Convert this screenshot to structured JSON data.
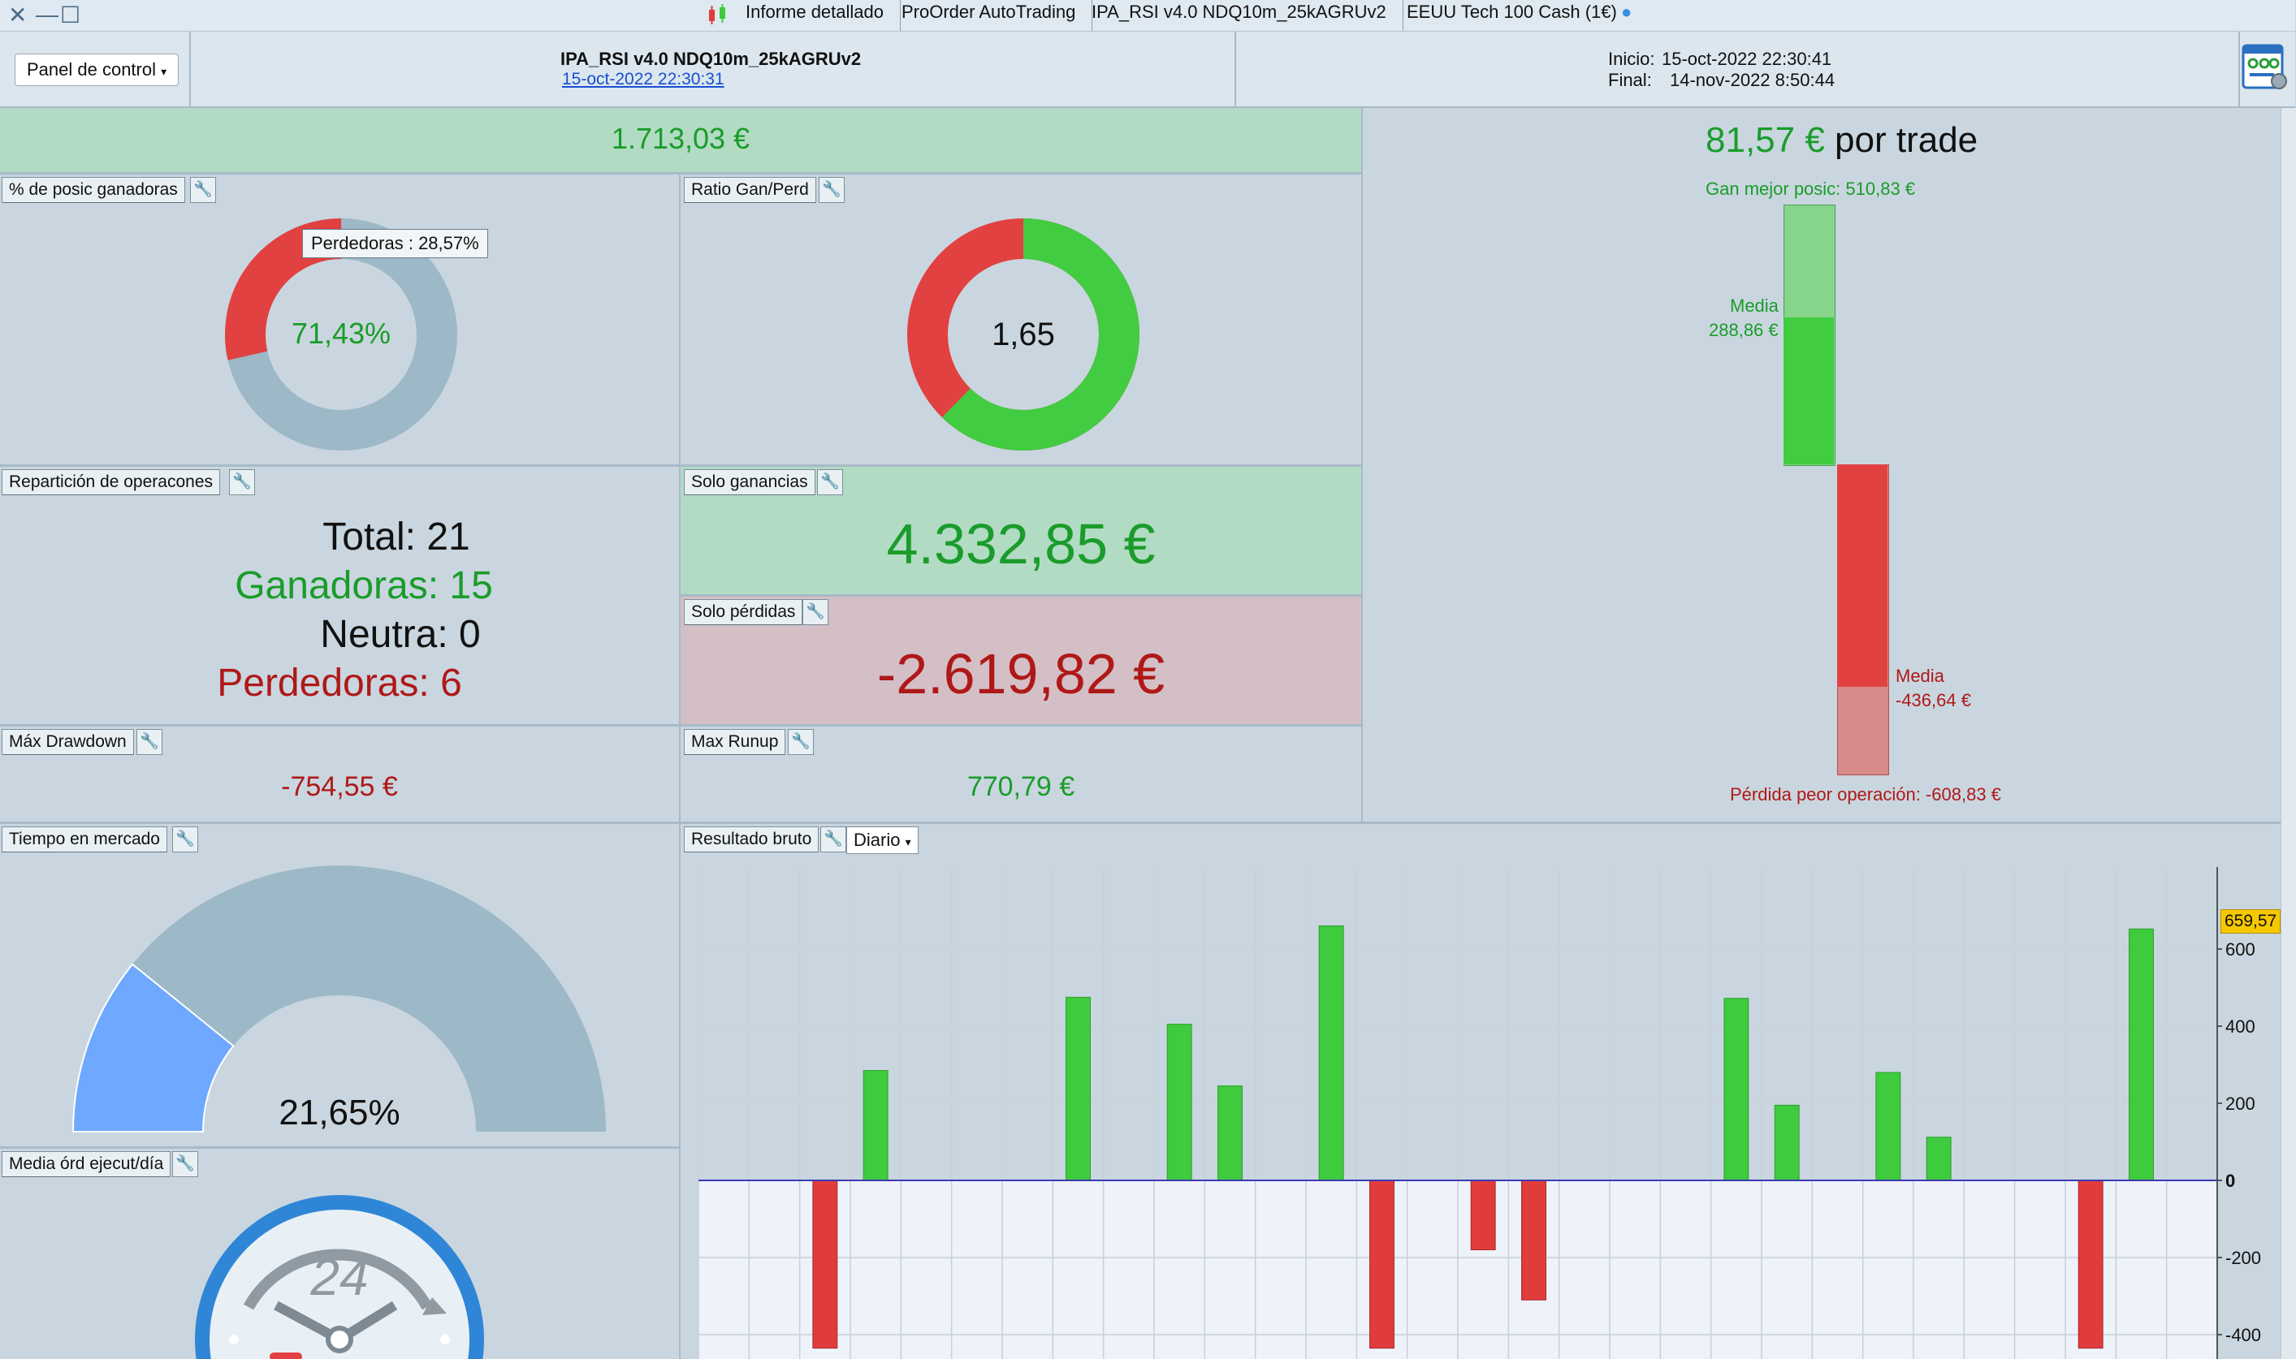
{
  "window": {
    "tabs": [
      "Informe detallado",
      "ProOrder AutoTrading",
      "IPA_RSI v4.0 NDQ10m_25kAGRUv2",
      "EEUU Tech 100 Cash (1€)"
    ]
  },
  "header": {
    "panel_button": "Panel de control",
    "strategy_name": "IPA_RSI v4.0 NDQ10m_25kAGRUv2",
    "strategy_date": "15-oct-2022 22:30:31",
    "start_label": "Inicio:",
    "start_value": "15-oct-2022 22:30:41",
    "end_label": "Final:",
    "end_value": "14-nov-2022 8:50:44"
  },
  "summary": {
    "total_result": "1.713,03 €"
  },
  "win_pct": {
    "label": "% de posic ganadoras",
    "value_text": "71,43%",
    "tooltip": "Perdedoras : 28,57%",
    "win_fraction": 0.7143
  },
  "ratio": {
    "label": "Ratio Gan/Perd",
    "value_text": "1,65",
    "gain_fraction": 0.6232
  },
  "distribution": {
    "label": "Repartición de operacones",
    "total": "Total: 21",
    "winners": "Ganadoras: 15",
    "neutral": "Neutra: 0",
    "losers": "Perdedoras: 6"
  },
  "gains_only": {
    "label": "Solo ganancias",
    "value": "4.332,85 €"
  },
  "losses_only": {
    "label": "Solo pérdidas",
    "value": "-2.619,82 €"
  },
  "drawdown": {
    "label": "Máx Drawdown",
    "value": "-754,55 €"
  },
  "runup": {
    "label": "Max Runup",
    "value": "770,79 €"
  },
  "per_trade": {
    "amount": "81,57 €",
    "suffix": "por trade",
    "best_label": "Gan mejor posic: 510,83 €",
    "avg_gain_label": "Media",
    "avg_gain_value": "288,86 €",
    "avg_loss_label": "Media",
    "avg_loss_value": "-436,64 €",
    "worst_label": "Pérdida peor operación: -608,83 €",
    "best": 510.83,
    "avg_gain": 288.86,
    "avg_loss": -436.64,
    "worst": -608.83
  },
  "time_in_market": {
    "label": "Tiempo en mercado",
    "value_text": "21,65%",
    "fraction": 0.2165
  },
  "orders_per_day": {
    "label": "Media órd ejecut/día",
    "clock_number": "24"
  },
  "gross_result": {
    "label": "Resultado bruto",
    "period": "Diario",
    "last_value_badge": "659,57"
  },
  "chart_data": {
    "type": "bar",
    "title": "Resultado bruto",
    "xlabel": "",
    "ylabel": "",
    "yticks": [
      600,
      400,
      200,
      0,
      -200,
      -400
    ],
    "ylim": [
      -460,
      790
    ],
    "grid": true,
    "values": [
      0,
      0,
      -435,
      285,
      0,
      0,
      0,
      475,
      0,
      405,
      245,
      0,
      660,
      -435,
      0,
      -180,
      -310,
      0,
      0,
      0,
      472,
      195,
      0,
      280,
      112,
      0,
      0,
      -435,
      652,
      0
    ],
    "colors": {
      "positive": "#3ecb3e",
      "negative": "#e03c3c"
    }
  },
  "colors": {
    "win_green": "#42cc42",
    "loss_red": "#e24141",
    "neutral_gray": "#9db8c7"
  }
}
